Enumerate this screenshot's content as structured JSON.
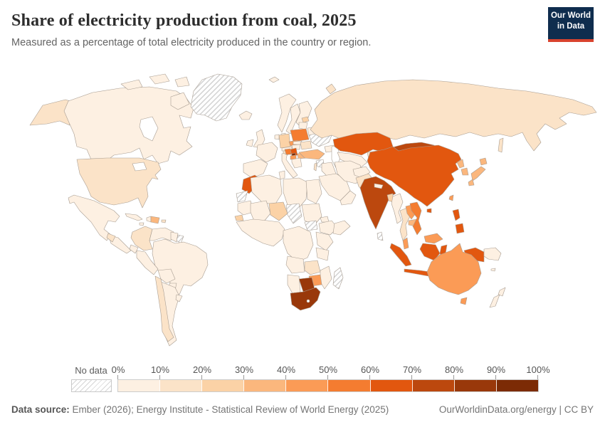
{
  "header": {
    "title": "Share of electricity production from coal, 2025",
    "subtitle": "Measured as a percentage of total electricity produced in the country or region."
  },
  "logo": {
    "line1": "Our World",
    "line2": "in Data",
    "bg_color": "#0f2d4e",
    "bar_color": "#d8432e"
  },
  "legend": {
    "no_data_label": "No data",
    "ticks": [
      "0%",
      "10%",
      "20%",
      "30%",
      "40%",
      "50%",
      "60%",
      "70%",
      "80%",
      "90%",
      "100%"
    ]
  },
  "footer": {
    "source_label": "Data source:",
    "source_text": " Ember (2026); Energy Institute - Statistical Review of World Energy (2025)",
    "credit": "OurWorldinData.org/energy | CC BY"
  },
  "chart_data": {
    "type": "choropleth",
    "title": "Share of electricity production from coal, 2025",
    "unit": "%",
    "bin_edges": [
      0,
      10,
      20,
      30,
      40,
      50,
      60,
      70,
      80,
      90,
      100
    ],
    "palette": [
      "#fdf0e2",
      "#fbe3c8",
      "#fbd2a6",
      "#fbb77d",
      "#fb9b56",
      "#f47c30",
      "#e2570f",
      "#bc480e",
      "#99380a",
      "#7c2b05"
    ],
    "no_data_pattern": "diagonal-hatch",
    "countries": {
      "canada": 5,
      "usa": 16,
      "mexico": 3,
      "guatemala": 13,
      "central_america": 2,
      "cuba": 2,
      "haiti": 2,
      "dominican_republic": 36,
      "puerto_rico": 17,
      "jamaica": 2,
      "greenland": null,
      "iceland": 0,
      "colombia": 13,
      "venezuela": 2,
      "guyana_suriname": 3,
      "french_guiana": null,
      "brazil": 4,
      "ecuador": 1,
      "peru": 4,
      "bolivia": 2,
      "paraguay": 0,
      "chile": 16,
      "argentina": 2,
      "uruguay": 1,
      "uk": 2,
      "ireland": 4,
      "norway": 0,
      "sweden": 1,
      "finland": 8,
      "denmark": 9,
      "estonia": 26,
      "latvia_lithuania": 2,
      "belarus": 1,
      "ukraine": null,
      "poland": 57,
      "germany": 23,
      "netherlands": 8,
      "france": 1,
      "iberia": 1,
      "italy": 4,
      "austria": 3,
      "czechia": 40,
      "slovakia": 7,
      "hungary": 7,
      "romania": 12,
      "serbia": 64,
      "kosovo": 92,
      "bosnia": 58,
      "croatia": 10,
      "bulgaria": 36,
      "greece": 6,
      "north_macedonia": 48,
      "russia": 16,
      "svalbard": 0,
      "caucasus": 2,
      "turkey": 35,
      "syria": null,
      "israel": 17,
      "iraq": 0,
      "saudi_arabia": 0,
      "yemen_oman": 0,
      "iran": 0,
      "morocco": 62,
      "western_sahara": null,
      "algeria": 0,
      "tunisia": 0,
      "libya": 0,
      "egypt": 0,
      "mauritania": 2,
      "mali": 2,
      "senegal": 23,
      "niger": 26,
      "chad": null,
      "sudan": 0,
      "south_sudan": null,
      "eritrea_djibouti": 0,
      "ethiopia": 0,
      "somalia": 2,
      "west_africa": 2,
      "central_africa": 0,
      "uganda_kenya": 1,
      "tanzania": 2,
      "angola": 0,
      "zambia": 13,
      "mozambique": 4,
      "zimbabwe": 45,
      "botswana": 88,
      "namibia": 4,
      "south_africa": 84,
      "madagascar": null,
      "kazakhstan": 64,
      "uzbek_turkmen": 3,
      "kyrgyz_tajik": 15,
      "afghanistan": 2,
      "pakistan": 16,
      "india": 74,
      "nepal": 1,
      "bangladesh": 24,
      "sri_lanka": null,
      "myanmar": 6,
      "thailand": 15,
      "laos": 46,
      "cambodia": 38,
      "vietnam": 54,
      "malaysia": 45,
      "indonesia": 62,
      "png": 2,
      "philippines": 61,
      "taiwan": 42,
      "china": 62,
      "mongolia": 77,
      "north_korea": 32,
      "south_korea": 30,
      "japan": 31,
      "australia": 46,
      "new_zealand": 5,
      "new_caledonia": 0
    }
  }
}
